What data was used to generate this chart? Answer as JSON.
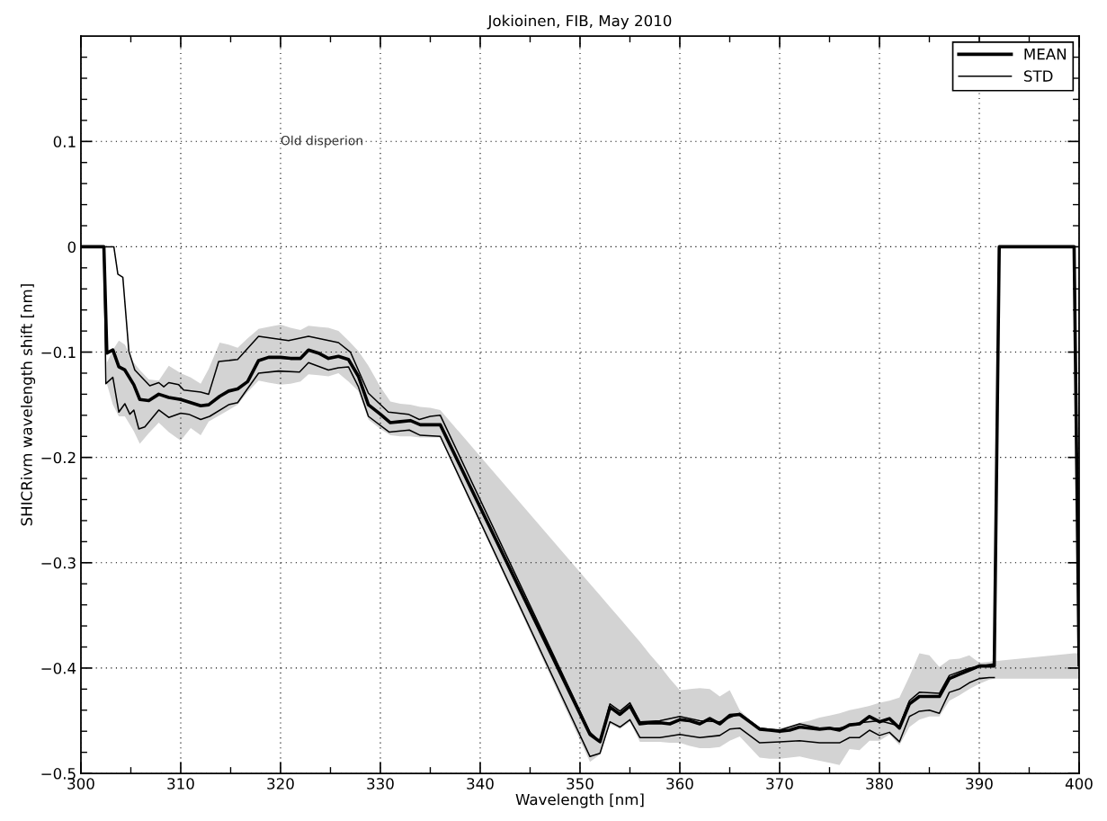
{
  "chart_data": {
    "type": "line",
    "title": "Jokioinen, FIB, May 2010",
    "xlabel": "Wavelength [nm]",
    "ylabel": "SHICRivm wavelength shift [nm]",
    "annotations": [
      "Old disperion"
    ],
    "xlim": [
      300,
      400
    ],
    "ylim": [
      -0.5,
      0.2
    ],
    "xticks": [
      300,
      310,
      320,
      330,
      340,
      350,
      360,
      370,
      380,
      390,
      400,
      {
        "value": 305,
        "label": null
      },
      {
        "value": 315,
        "label": null
      },
      {
        "value": 325,
        "label": null
      },
      {
        "value": 335,
        "label": null
      },
      {
        "value": 345,
        "label": null
      },
      {
        "value": 355,
        "label": null
      },
      {
        "value": 365,
        "label": null
      },
      {
        "value": 375,
        "label": null
      },
      {
        "value": 385,
        "label": null
      },
      {
        "value": 395,
        "label": null
      }
    ],
    "yticks": [
      -0.5,
      -0.4,
      -0.3,
      -0.2,
      -0.1,
      0,
      0.1,
      {
        "value": -0.48,
        "label": null
      },
      {
        "value": -0.46,
        "label": null
      },
      {
        "value": -0.44,
        "label": null
      },
      {
        "value": -0.42,
        "label": null
      },
      {
        "value": -0.38,
        "label": null
      },
      {
        "value": -0.36,
        "label": null
      },
      {
        "value": -0.34,
        "label": null
      },
      {
        "value": -0.32,
        "label": null
      },
      {
        "value": -0.28,
        "label": null
      },
      {
        "value": -0.26,
        "label": null
      },
      {
        "value": -0.24,
        "label": null
      },
      {
        "value": -0.22,
        "label": null
      },
      {
        "value": -0.18,
        "label": null
      },
      {
        "value": -0.16,
        "label": null
      },
      {
        "value": -0.14,
        "label": null
      },
      {
        "value": -0.12,
        "label": null
      },
      {
        "value": -0.08,
        "label": null
      },
      {
        "value": -0.06,
        "label": null
      },
      {
        "value": -0.04,
        "label": null
      },
      {
        "value": -0.02,
        "label": null
      },
      {
        "value": 0.02,
        "label": null
      },
      {
        "value": 0.04,
        "label": null
      },
      {
        "value": 0.06,
        "label": null
      },
      {
        "value": 0.08,
        "label": null
      },
      {
        "value": 0.12,
        "label": null
      },
      {
        "value": 0.14,
        "label": null
      },
      {
        "value": 0.16,
        "label": null
      },
      {
        "value": 0.18,
        "label": null
      }
    ],
    "grid": true,
    "legend": "top right",
    "marker": "none",
    "line_style": "solid",
    "series": [
      {
        "name": "MEAN",
        "color": "#000000",
        "x": [
          300,
          302.3,
          302.6,
          303.2,
          303.8,
          304.4,
          305.3,
          305.9,
          306.8,
          307.8,
          308.8,
          310,
          311,
          312,
          312.8,
          313.9,
          314.8,
          315.7,
          316.7,
          317.8,
          318.8,
          320,
          321,
          322,
          322.8,
          323.8,
          324.8,
          325.8,
          326.8,
          327.8,
          328.8,
          330,
          331,
          332,
          333,
          334,
          335,
          336,
          351,
          352,
          353,
          354,
          355,
          356,
          357,
          358,
          359,
          360,
          361,
          362,
          363,
          364,
          365,
          366,
          367,
          368,
          369,
          370,
          371,
          372,
          373,
          374,
          375,
          376,
          377,
          378,
          379,
          380,
          381,
          382,
          383,
          384,
          385,
          386,
          387,
          388,
          389,
          390,
          391,
          391.5,
          392,
          399.5,
          400
        ],
        "values": [
          0,
          0,
          -0.101,
          -0.098,
          -0.114,
          -0.117,
          -0.131,
          -0.145,
          -0.146,
          -0.14,
          -0.143,
          -0.145,
          -0.148,
          -0.151,
          -0.15,
          -0.142,
          -0.137,
          -0.135,
          -0.128,
          -0.108,
          -0.105,
          -0.105,
          -0.106,
          -0.106,
          -0.098,
          -0.101,
          -0.106,
          -0.104,
          -0.107,
          -0.123,
          -0.15,
          -0.159,
          -0.167,
          -0.166,
          -0.165,
          -0.169,
          -0.169,
          -0.169,
          -0.463,
          -0.47,
          -0.437,
          -0.444,
          -0.436,
          -0.453,
          -0.452,
          -0.452,
          -0.453,
          -0.449,
          -0.45,
          -0.453,
          -0.448,
          -0.453,
          -0.445,
          -0.444,
          -0.451,
          -0.458,
          -0.459,
          -0.46,
          -0.459,
          -0.456,
          -0.457,
          -0.458,
          -0.457,
          -0.459,
          -0.454,
          -0.453,
          -0.446,
          -0.451,
          -0.448,
          -0.457,
          -0.434,
          -0.427,
          -0.427,
          -0.427,
          -0.41,
          -0.406,
          -0.402,
          -0.398,
          -0.398,
          -0.398,
          0,
          0,
          -0.397
        ],
        "upper": [
          null,
          null,
          -0.11,
          -0.098,
          -0.089,
          -0.093,
          -0.11,
          -0.117,
          -0.126,
          -0.127,
          -0.113,
          -0.12,
          -0.124,
          -0.13,
          -0.116,
          -0.091,
          -0.093,
          -0.096,
          -0.087,
          -0.078,
          -0.076,
          -0.074,
          -0.077,
          -0.079,
          -0.075,
          -0.076,
          -0.077,
          -0.08,
          -0.089,
          -0.099,
          -0.113,
          -0.133,
          -0.147,
          -0.149,
          -0.15,
          -0.152,
          -0.153,
          -0.155,
          -0.32,
          -0.331,
          -0.342,
          -0.353,
          -0.364,
          -0.375,
          -0.387,
          -0.398,
          -0.41,
          -0.421,
          -0.42,
          -0.419,
          -0.42,
          -0.427,
          -0.421,
          -0.44,
          -0.449,
          -0.458,
          -0.458,
          -0.457,
          -0.455,
          -0.452,
          -0.45,
          -0.447,
          -0.445,
          -0.443,
          -0.44,
          -0.438,
          -0.436,
          -0.433,
          -0.431,
          -0.428,
          -0.408,
          -0.386,
          -0.388,
          -0.399,
          -0.392,
          -0.391,
          -0.388,
          -0.395,
          -0.394,
          -0.393,
          -0.393,
          -0.386,
          -0.386
        ],
        "lower": [
          null,
          null,
          -0.13,
          -0.15,
          -0.161,
          -0.161,
          -0.175,
          -0.187,
          -0.177,
          -0.167,
          -0.176,
          -0.184,
          -0.172,
          -0.179,
          -0.166,
          -0.16,
          -0.155,
          -0.15,
          -0.138,
          -0.127,
          -0.129,
          -0.131,
          -0.13,
          -0.128,
          -0.121,
          -0.122,
          -0.123,
          -0.12,
          -0.128,
          -0.137,
          -0.164,
          -0.173,
          -0.179,
          -0.18,
          -0.18,
          -0.181,
          -0.181,
          -0.181,
          -0.489,
          -0.482,
          -0.453,
          -0.458,
          -0.451,
          -0.47,
          -0.47,
          -0.47,
          -0.471,
          -0.471,
          -0.474,
          -0.476,
          -0.476,
          -0.475,
          -0.469,
          -0.465,
          -0.475,
          -0.485,
          -0.486,
          -0.486,
          -0.485,
          -0.484,
          -0.486,
          -0.488,
          -0.49,
          -0.492,
          -0.477,
          -0.478,
          -0.469,
          -0.469,
          -0.463,
          -0.473,
          -0.456,
          -0.449,
          -0.446,
          -0.446,
          -0.431,
          -0.426,
          -0.42,
          -0.415,
          -0.411,
          -0.41,
          -0.41,
          -0.41,
          -0.41
        ]
      },
      {
        "name": "STD",
        "color": "#000000",
        "x": [
          300,
          303.3,
          303.7,
          304.2,
          304.8,
          305.4,
          306.9,
          307.8,
          308.3,
          308.8,
          309.8,
          310.3,
          312,
          312.8,
          313.8,
          315.7,
          317.8,
          320.8,
          322.8,
          325.8,
          327,
          328.8,
          330.8,
          332.8,
          333.9,
          335,
          336,
          351,
          352,
          353,
          354,
          355,
          356,
          358,
          360,
          362,
          364,
          366,
          368,
          370,
          372,
          374,
          376,
          378,
          380,
          382,
          383,
          384,
          386,
          387,
          389,
          391.5
        ],
        "values": [
          0,
          0,
          -0.026,
          -0.029,
          -0.099,
          -0.117,
          -0.132,
          -0.129,
          -0.133,
          -0.129,
          -0.131,
          -0.136,
          -0.138,
          -0.14,
          -0.109,
          -0.107,
          -0.085,
          -0.089,
          -0.085,
          -0.091,
          -0.1,
          -0.139,
          -0.157,
          -0.159,
          -0.164,
          -0.161,
          -0.16,
          -0.461,
          -0.47,
          -0.434,
          -0.441,
          -0.433,
          -0.451,
          -0.45,
          -0.446,
          -0.45,
          -0.451,
          -0.443,
          -0.457,
          -0.459,
          -0.453,
          -0.457,
          -0.457,
          -0.452,
          -0.45,
          -0.455,
          -0.431,
          -0.423,
          -0.424,
          -0.407,
          -0.4,
          -0.396
        ]
      },
      {
        "color": "#000000",
        "x": [
          300,
          302.3,
          302.5,
          303.2,
          303.8,
          304.4,
          304.9,
          305.3,
          305.8,
          306.4,
          307.8,
          308.8,
          310,
          310.8,
          312,
          312.9,
          314.8,
          315.7,
          317.8,
          319.8,
          321.9,
          322.8,
          324.8,
          325.8,
          326.8,
          327.8,
          328.8,
          330.9,
          332.9,
          334,
          336,
          351,
          352,
          353,
          354,
          355,
          356,
          358,
          360,
          362,
          364,
          365,
          366,
          368,
          370,
          372,
          374,
          376,
          377,
          378,
          379,
          380,
          381,
          382,
          383,
          384,
          385,
          386,
          387,
          388,
          389,
          390,
          391,
          391.5
        ],
        "values": [
          0,
          0,
          -0.13,
          -0.124,
          -0.157,
          -0.149,
          -0.159,
          -0.155,
          -0.173,
          -0.171,
          -0.155,
          -0.162,
          -0.158,
          -0.159,
          -0.164,
          -0.161,
          -0.15,
          -0.148,
          -0.12,
          -0.118,
          -0.119,
          -0.11,
          -0.117,
          -0.115,
          -0.114,
          -0.133,
          -0.161,
          -0.176,
          -0.174,
          -0.179,
          -0.18,
          -0.484,
          -0.481,
          -0.451,
          -0.456,
          -0.449,
          -0.466,
          -0.466,
          -0.463,
          -0.466,
          -0.464,
          -0.458,
          -0.457,
          -0.471,
          -0.47,
          -0.469,
          -0.471,
          -0.471,
          -0.466,
          -0.466,
          -0.459,
          -0.464,
          -0.461,
          -0.47,
          -0.446,
          -0.441,
          -0.44,
          -0.443,
          -0.423,
          -0.42,
          -0.414,
          -0.41,
          -0.409,
          -0.409
        ]
      }
    ]
  }
}
